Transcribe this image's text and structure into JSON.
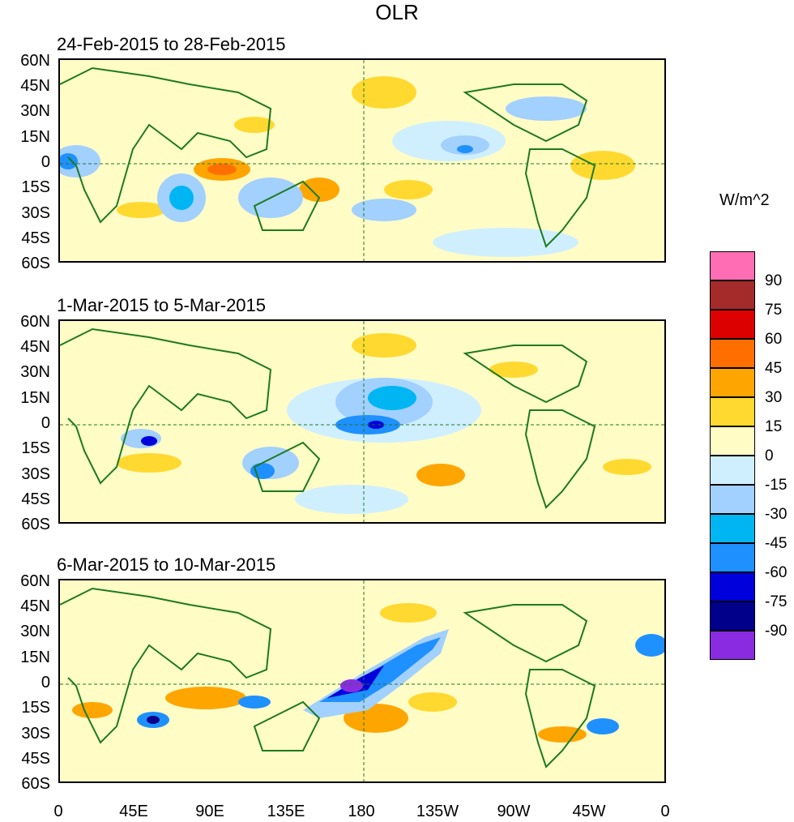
{
  "title": "OLR",
  "panels": [
    {
      "label": "24-Feb-2015 to 28-Feb-2015"
    },
    {
      "label": "1-Mar-2015 to 5-Mar-2015"
    },
    {
      "label": "6-Mar-2015 to 10-Mar-2015"
    }
  ],
  "lat_labels": [
    "60N",
    "45N",
    "30N",
    "15N",
    "0",
    "15S",
    "30S",
    "45S",
    "60S"
  ],
  "lon_labels": [
    "0",
    "45E",
    "90E",
    "135E",
    "180",
    "135W",
    "90W",
    "45W",
    "0"
  ],
  "colorbar": {
    "units": "W/m^2",
    "levels": [
      "90",
      "75",
      "60",
      "45",
      "30",
      "15",
      "0",
      "-15",
      "-30",
      "-45",
      "-60",
      "-75",
      "-90"
    ],
    "colors": [
      "#ff6eb4",
      "#a52a2a",
      "#dd0000",
      "#ff6f00",
      "#ffa500",
      "#ffd92f",
      "#fffcc6",
      "#cfefff",
      "#a2d0ff",
      "#00b6f2",
      "#1e90ff",
      "#0000dd",
      "#00008b",
      "#8a2be2"
    ]
  }
}
